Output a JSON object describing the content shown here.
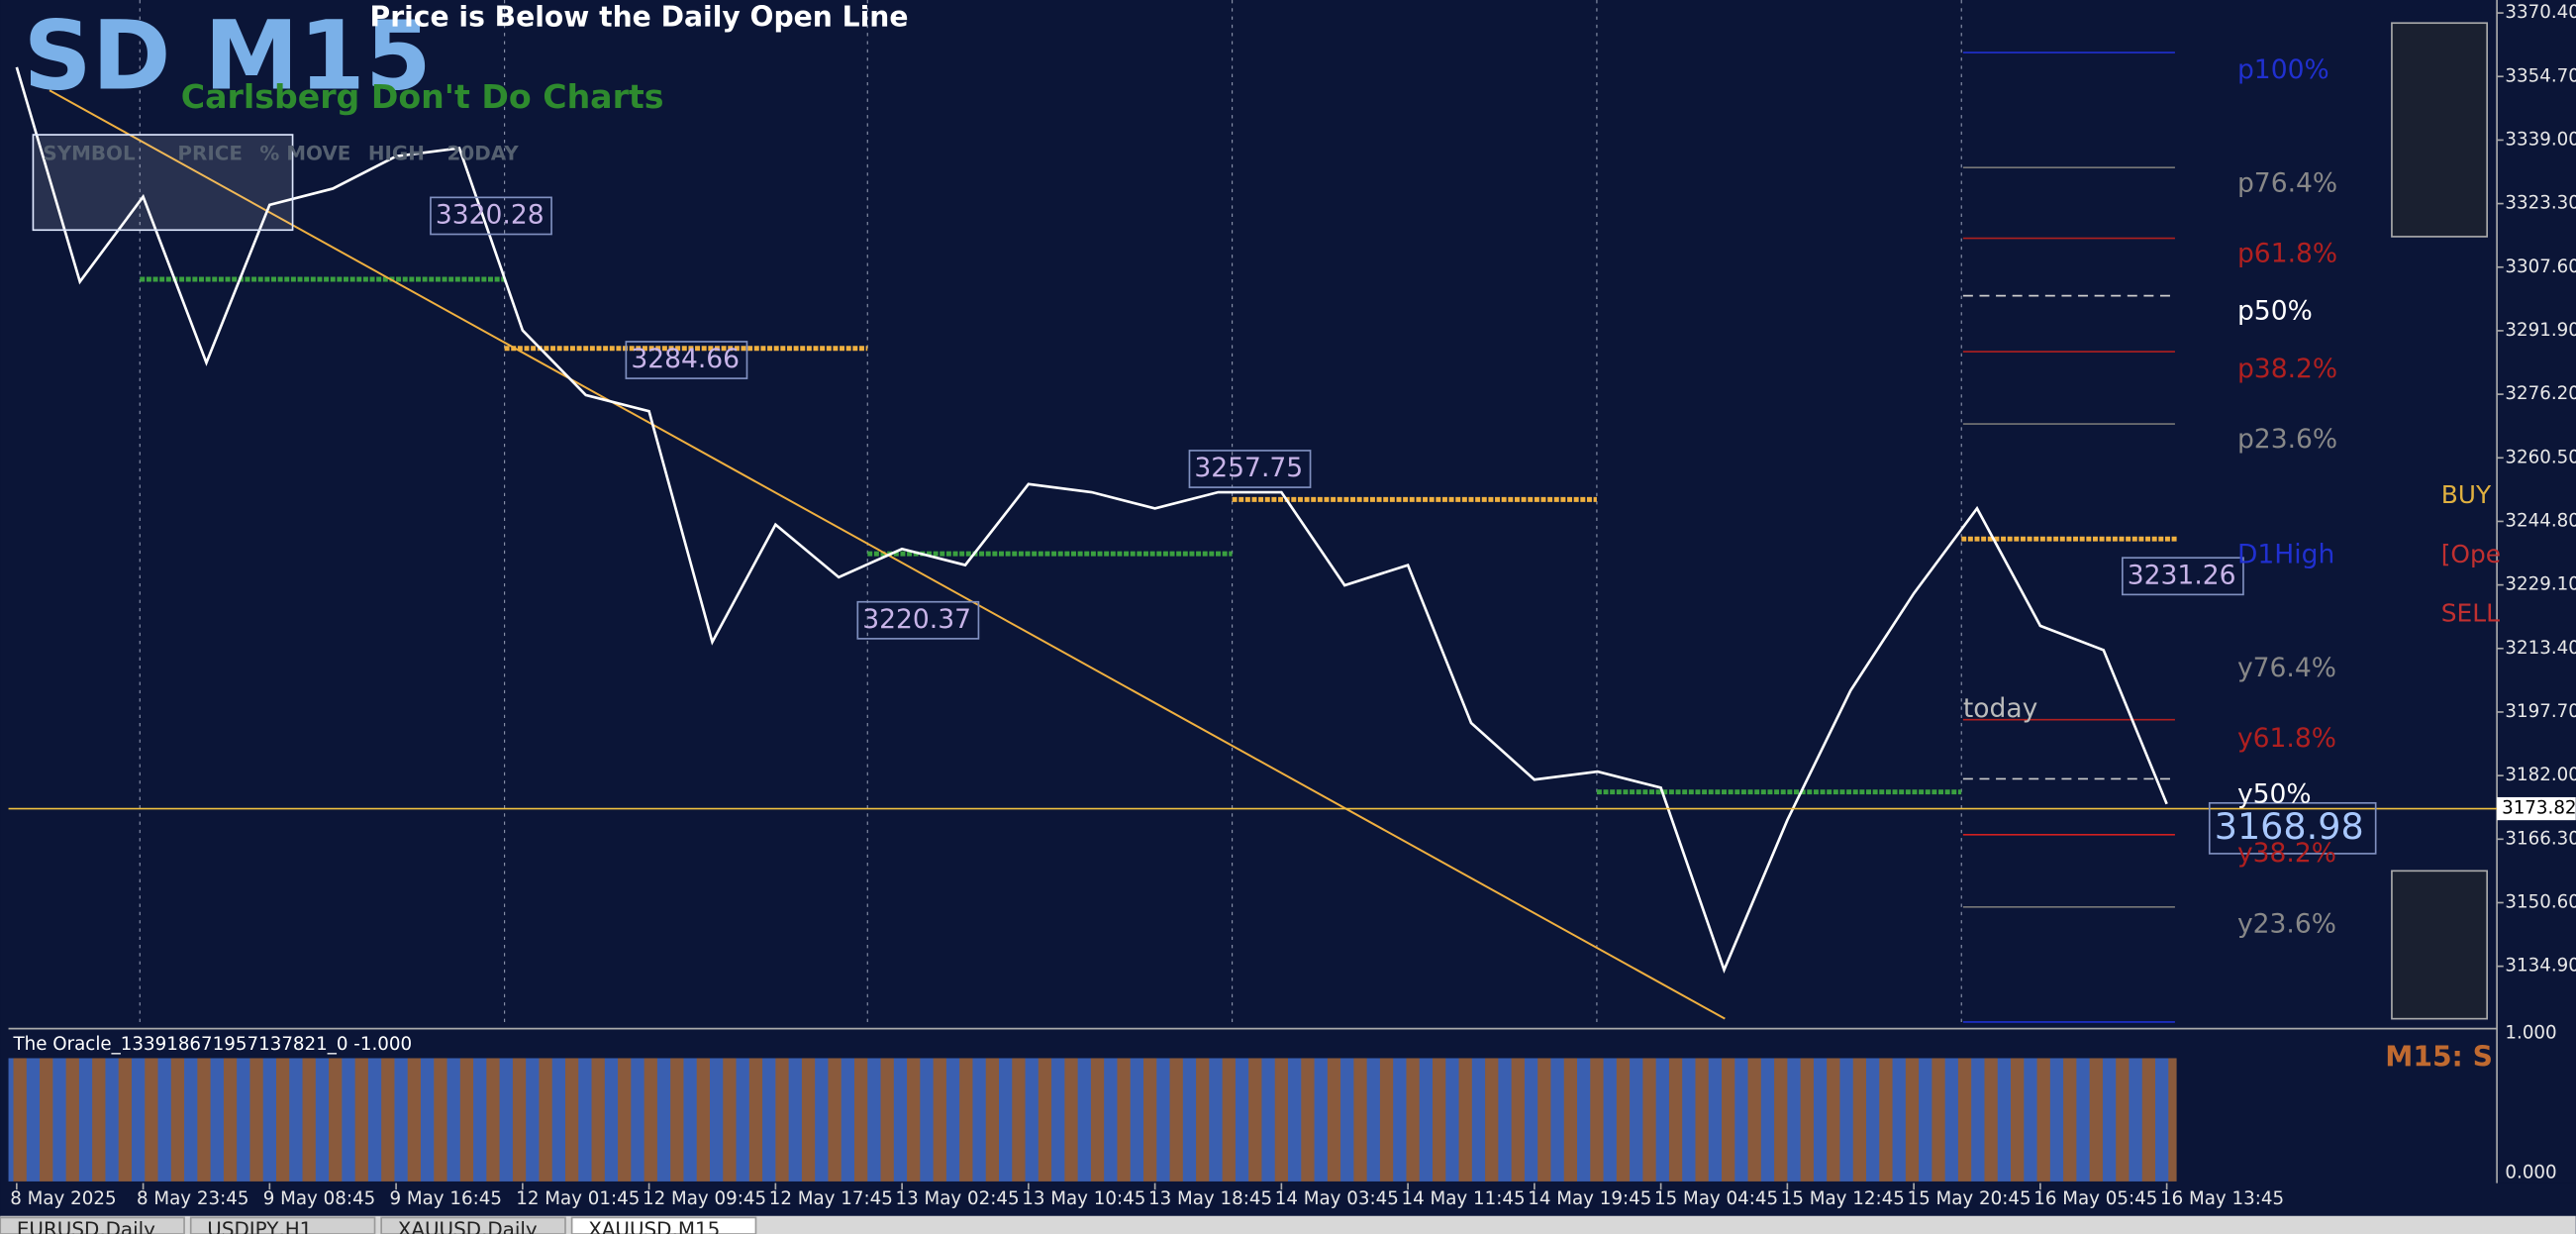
{
  "chart_data": {
    "type": "line",
    "title": "SD M15",
    "subtitle": "Carlsberg Don't Do Charts",
    "alert": "Price is Below the Daily Open Line",
    "panel_headers": [
      "SYMBOL",
      "PRICE",
      "% MOVE",
      "HIGH",
      "20DAY"
    ],
    "categories": [
      "8 May 2025",
      null,
      "8 May 23:45",
      null,
      "9 May 08:45",
      null,
      "9 May 16:45",
      null,
      "12 May 01:45",
      null,
      "12 May 09:45",
      null,
      "12 May 17:45",
      null,
      "13 May 02:45",
      null,
      "13 May 10:45",
      null,
      "13 May 18:45",
      null,
      "14 May 03:45",
      null,
      "14 May 11:45",
      null,
      "14 May 19:45",
      null,
      "15 May 04:45",
      null,
      "15 May 12:45",
      null,
      "15 May 20:45",
      null,
      "16 May 05:45",
      null,
      "16 May 13:45"
    ],
    "series": [
      {
        "name": "XAUUSD",
        "color": "#ffffff",
        "values": [
          3357,
          3304,
          3325,
          3284,
          3323,
          3327,
          3335,
          3337,
          3292,
          3276,
          3272,
          3215,
          3244,
          3231,
          3238,
          3234,
          3254,
          3252,
          3248,
          3252,
          3252,
          3229,
          3234,
          3195,
          3181,
          3183,
          3179,
          3134,
          3171,
          3203,
          3227,
          3248,
          3219,
          3213,
          3175
        ]
      }
    ],
    "ylim": [
      3119.9,
      3373.6
    ],
    "yticks": [
      {
        "value": 3370.4,
        "label": "3370.40"
      },
      {
        "value": 3354.7,
        "label": "3354.70"
      },
      {
        "value": 3339.0,
        "label": "3339.00"
      },
      {
        "value": 3323.3,
        "label": "3323.30"
      },
      {
        "value": 3307.6,
        "label": "3307.60"
      },
      {
        "value": 3291.9,
        "label": "3291.90"
      },
      {
        "value": 3276.2,
        "label": "3276.20"
      },
      {
        "value": 3260.5,
        "label": "3260.50"
      },
      {
        "value": 3244.8,
        "label": "3244.80"
      },
      {
        "value": 3229.1,
        "label": "3229.10"
      },
      {
        "value": 3213.4,
        "label": "3213.40"
      },
      {
        "value": 3197.7,
        "label": "3197.70"
      },
      {
        "value": 3182.0,
        "label": "3182.00"
      },
      {
        "value": 3166.3,
        "label": "3166.30"
      },
      {
        "value": 3150.6,
        "label": "3150.60"
      },
      {
        "value": 3134.9,
        "label": "3134.90"
      }
    ],
    "current_price": 3173.82,
    "price_labels": [
      3320.28,
      3284.66,
      3257.75,
      3220.37,
      3231.26,
      3168.98
    ],
    "fib_labels": [
      "p100%",
      "p76.4%",
      "p61.8%",
      "p50%",
      "p38.2%",
      "p23.6%",
      "D1High",
      "today",
      "y76.4%",
      "y61.8%",
      "y50%",
      "y38.2%",
      "y23.6%"
    ],
    "side_labels": [
      "BUY",
      "[Ope",
      "SELL"
    ],
    "indicator": {
      "label": "The Oracle_133918671957137821_0 -1.000",
      "yticks": [
        {
          "value": 1,
          "label": "1.000"
        },
        {
          "value": 0,
          "label": "0.000"
        }
      ],
      "note": "M15: S"
    },
    "tabs": [
      "EURUSD,Daily",
      "USDJPY,H1",
      "XAUUSD,Daily",
      "XAUUSD,M15"
    ]
  }
}
